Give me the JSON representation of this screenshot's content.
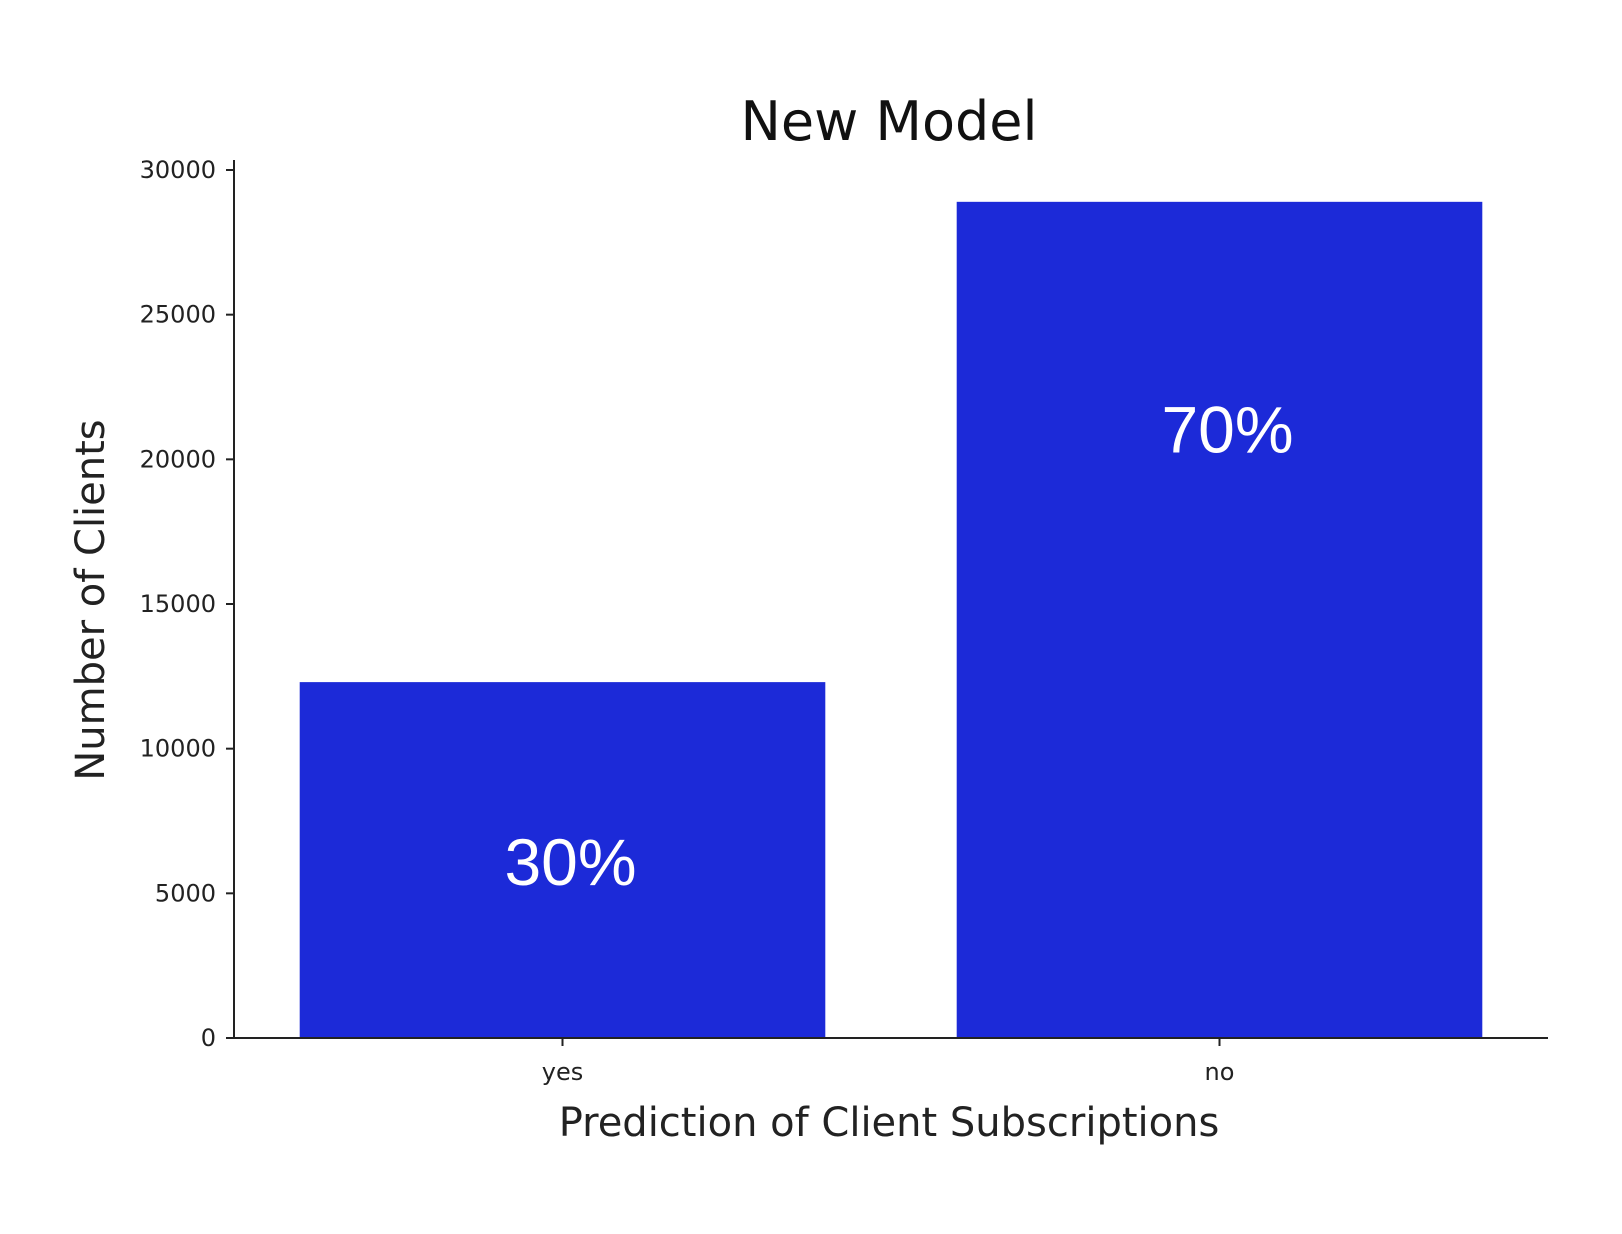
{
  "chart_data": {
    "type": "bar",
    "title": "New Model",
    "xlabel": "Prediction of Client Subscriptions",
    "ylabel": "Number of Clients",
    "categories": [
      "yes",
      "no"
    ],
    "values": [
      12300,
      28900
    ],
    "bar_labels": [
      "30%",
      "70%"
    ],
    "ylim": [
      0,
      30000
    ],
    "yticks": [
      0,
      5000,
      10000,
      15000,
      20000,
      25000,
      30000
    ],
    "ytick_labels": [
      "0",
      "5000",
      "10000",
      "15000",
      "20000",
      "25000",
      "30000"
    ],
    "grid": false,
    "legend": false,
    "colors": {
      "bar": "#1c2ad8",
      "bar_label": "#ffffff",
      "axis": "#222222"
    }
  }
}
